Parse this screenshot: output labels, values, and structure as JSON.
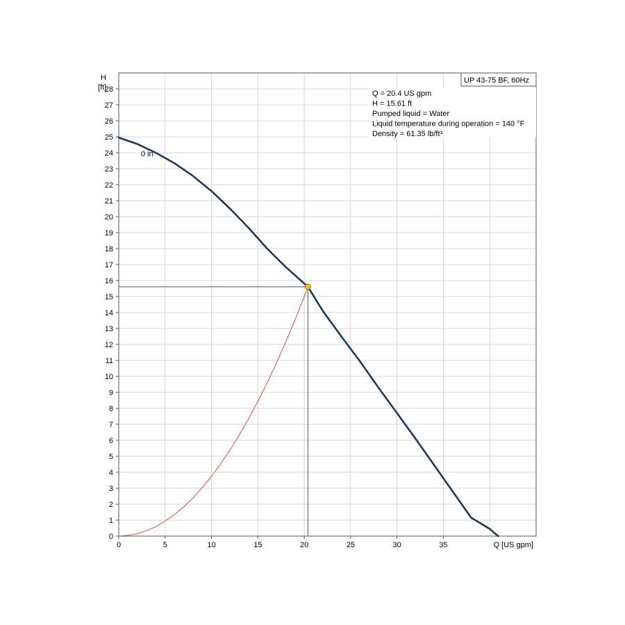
{
  "chart_data": {
    "type": "line",
    "title": "UP 43-75 BF, 60Hz",
    "xlabel": "Q [US gpm]",
    "ylabel": "H",
    "ylabel_unit": "[ft]",
    "xlim": [
      0,
      45
    ],
    "ylim": [
      0,
      29
    ],
    "x_ticks": [
      0,
      5,
      10,
      15,
      20,
      25,
      30,
      35
    ],
    "y_ticks": [
      0,
      1,
      2,
      3,
      4,
      5,
      6,
      7,
      8,
      9,
      10,
      11,
      12,
      13,
      14,
      15,
      16,
      17,
      18,
      19,
      20,
      21,
      22,
      23,
      24,
      25,
      26,
      27,
      28
    ],
    "grid": true,
    "series": [
      {
        "name": "0 in",
        "color": "#1b3a5c",
        "x": [
          0,
          2,
          4,
          6,
          8,
          10,
          12,
          14,
          16,
          18,
          20.4,
          22,
          24,
          26,
          28,
          30,
          32,
          34,
          36,
          38,
          40,
          40.9
        ],
        "y": [
          24.95,
          24.55,
          24.0,
          23.35,
          22.55,
          21.6,
          20.5,
          19.3,
          18.0,
          16.85,
          15.61,
          14.1,
          12.5,
          10.95,
          9.3,
          7.7,
          6.1,
          4.45,
          2.8,
          1.15,
          0.45,
          0.0
        ]
      },
      {
        "name": "",
        "color": "#e34c3c",
        "x": [
          0,
          1,
          2,
          3,
          4,
          5,
          6,
          7,
          8,
          9,
          10,
          11,
          12,
          13,
          14,
          15,
          16,
          17,
          18,
          19,
          20,
          20.4
        ],
        "y": [
          0,
          0.05,
          0.15,
          0.34,
          0.6,
          0.94,
          1.35,
          1.83,
          2.4,
          3.03,
          3.75,
          4.54,
          5.4,
          6.34,
          7.35,
          8.44,
          9.6,
          10.84,
          12.15,
          13.54,
          15.0,
          15.61
        ]
      }
    ],
    "operating_point": {
      "x": 20.4,
      "y": 15.61,
      "color": "#f2b62b"
    },
    "curve_label": "0 in",
    "info_lines": [
      "Q = 20.4 US gpm",
      "H = 15.61 ft",
      "Pumped liquid = Water",
      "Liquid temperature during operation = 140 °F",
      "Density = 61.35 lb/ft³"
    ]
  }
}
